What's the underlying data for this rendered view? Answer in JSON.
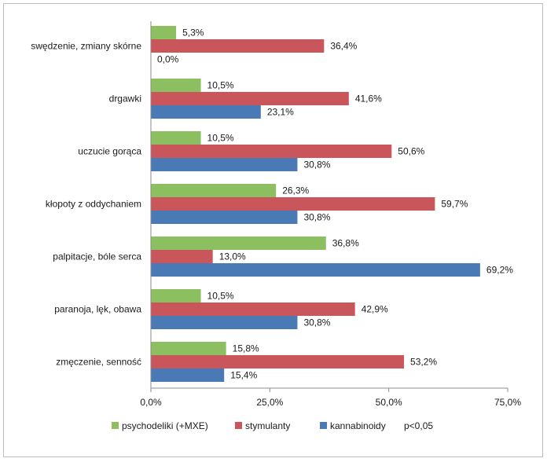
{
  "chart_data": {
    "type": "bar",
    "orientation": "horizontal",
    "categories": [
      "swędzenie, zmiany skórne",
      "drgawki",
      "uczucie gorąca",
      "kłopoty z oddychaniem",
      "palpitacje, bóle serca",
      "paranoja, lęk, obawa",
      "zmęczenie, senność"
    ],
    "series": [
      {
        "name": "psychodeliki (+MXE)",
        "color": "#8bbf60",
        "values": [
          5.3,
          10.5,
          10.5,
          26.3,
          36.8,
          10.5,
          15.8
        ],
        "labels": [
          "5,3%",
          "10,5%",
          "10,5%",
          "26,3%",
          "36,8%",
          "10,5%",
          "15,8%"
        ]
      },
      {
        "name": "stymulanty",
        "color": "#c9565a",
        "values": [
          36.4,
          41.6,
          50.6,
          59.7,
          13.0,
          42.9,
          53.2
        ],
        "labels": [
          "36,4%",
          "41,6%",
          "50,6%",
          "59,7%",
          "13,0%",
          "42,9%",
          "53,2%"
        ]
      },
      {
        "name": "kannabinoidy",
        "color": "#4a7ab5",
        "values": [
          0.0,
          23.1,
          30.8,
          30.8,
          69.2,
          30.8,
          15.4
        ],
        "labels": [
          "0,0%",
          "23,1%",
          "30,8%",
          "30,8%",
          "69,2%",
          "30,8%",
          "15,4%"
        ]
      }
    ],
    "xlim": [
      0,
      75
    ],
    "xticks": [
      0,
      25,
      50,
      75
    ],
    "xtick_labels": [
      "0,0%",
      "25,0%",
      "50,0%",
      "75,0%"
    ],
    "legend_position": "bottom",
    "legend_extra": "p<0,05",
    "grid": false
  }
}
